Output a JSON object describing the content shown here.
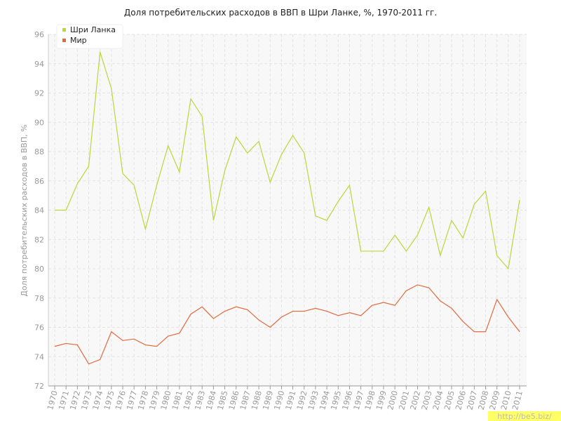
{
  "chart_data": {
    "type": "line",
    "title": "Доля потребительских расходов в ВВП в Шри Ланке, %, 1970-2011 гг.",
    "y_label": "Доля потребительских расходов в ВВП, %",
    "watermark": "http://be5.biz/",
    "categories": [
      "1970",
      "1971",
      "1972",
      "1973",
      "1974",
      "1975",
      "1976",
      "1977",
      "1978",
      "1979",
      "1980",
      "1981",
      "1982",
      "1983",
      "1984",
      "1985",
      "1986",
      "1987",
      "1988",
      "1989",
      "1990",
      "1991",
      "1992",
      "1993",
      "1994",
      "1995",
      "1996",
      "1997",
      "1998",
      "1999",
      "2000",
      "2001",
      "2002",
      "2003",
      "2004",
      "2005",
      "2006",
      "2007",
      "2008",
      "2009",
      "2010",
      "2011"
    ],
    "series": [
      {
        "name": "Шри Ланка",
        "color": "#bcd63a",
        "values": [
          84.0,
          84.0,
          85.8,
          87.0,
          94.8,
          92.3,
          86.5,
          85.7,
          82.7,
          85.7,
          88.4,
          86.6,
          91.6,
          90.4,
          83.3,
          86.7,
          89.0,
          87.9,
          88.7,
          85.9,
          87.8,
          89.1,
          87.9,
          83.6,
          83.3,
          84.6,
          85.7,
          81.2,
          81.2,
          81.2,
          82.3,
          81.2,
          82.3,
          84.2,
          80.9,
          83.3,
          82.1,
          84.4,
          85.3,
          80.9,
          80.0,
          84.7
        ]
      },
      {
        "name": "Мир",
        "color": "#e0693e",
        "values": [
          74.7,
          74.9,
          74.8,
          73.5,
          73.8,
          75.7,
          75.1,
          75.2,
          74.8,
          74.7,
          75.4,
          75.6,
          76.9,
          77.4,
          76.6,
          77.1,
          77.4,
          77.2,
          76.5,
          76.0,
          76.7,
          77.1,
          77.1,
          77.3,
          77.1,
          76.8,
          77.0,
          76.8,
          77.5,
          77.7,
          77.5,
          78.5,
          78.9,
          78.7,
          77.8,
          77.3,
          76.4,
          75.7,
          75.7,
          77.9,
          76.7,
          75.7
        ]
      }
    ],
    "ylim": [
      72,
      96
    ],
    "yticks": [
      72,
      74,
      76,
      78,
      80,
      82,
      84,
      86,
      88,
      90,
      92,
      94,
      96
    ],
    "grid": true,
    "legend": "top-left"
  }
}
